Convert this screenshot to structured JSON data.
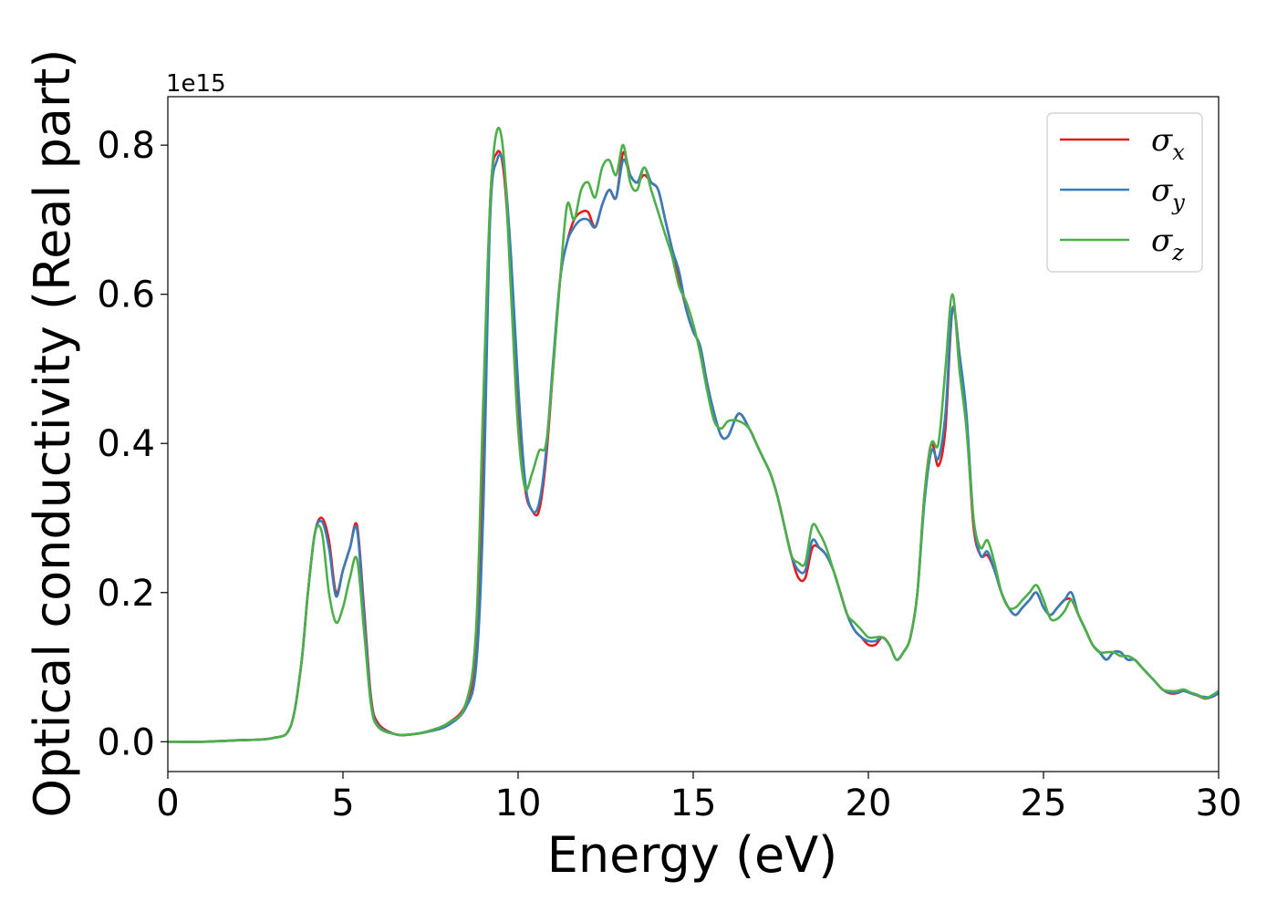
{
  "chart_data": {
    "type": "line",
    "xlabel": "Energy (eV)",
    "ylabel": "Optical conductivity (Real part)",
    "y_offset_label": "1e15",
    "xlim": [
      0,
      30
    ],
    "ylim": [
      -0.04,
      0.865
    ],
    "xticks": [
      0,
      5,
      10,
      15,
      20,
      25,
      30
    ],
    "xtick_labels": [
      "0",
      "5",
      "10",
      "15",
      "20",
      "25",
      "30"
    ],
    "yticks": [
      0.0,
      0.2,
      0.4,
      0.6,
      0.8
    ],
    "ytick_labels": [
      "0.0",
      "0.2",
      "0.4",
      "0.6",
      "0.8"
    ],
    "grid": false,
    "legend_position": "top-right",
    "series": [
      {
        "name": "σ",
        "subscript": "x",
        "color": "#e41a1c",
        "x": [
          0,
          1,
          2,
          3,
          3.5,
          3.8,
          4.0,
          4.2,
          4.4,
          4.6,
          4.8,
          5.0,
          5.2,
          5.4,
          5.6,
          5.8,
          6.0,
          6.5,
          7.0,
          7.5,
          8.0,
          8.5,
          8.8,
          9.0,
          9.2,
          9.4,
          9.6,
          9.8,
          10.0,
          10.2,
          10.4,
          10.6,
          10.8,
          11.0,
          11.2,
          11.4,
          11.6,
          11.8,
          12.0,
          12.2,
          12.4,
          12.6,
          12.8,
          13.0,
          13.2,
          13.4,
          13.6,
          13.8,
          14.0,
          14.2,
          14.4,
          14.6,
          14.8,
          15.0,
          15.2,
          15.4,
          15.6,
          15.8,
          16.0,
          16.3,
          16.6,
          16.8,
          17.0,
          17.2,
          17.4,
          17.6,
          17.8,
          18.0,
          18.2,
          18.4,
          18.6,
          18.8,
          19.0,
          19.2,
          19.4,
          19.6,
          19.8,
          20.0,
          20.2,
          20.4,
          20.6,
          20.8,
          21.0,
          21.2,
          21.4,
          21.6,
          21.8,
          22.0,
          22.2,
          22.4,
          22.6,
          22.8,
          23.0,
          23.2,
          23.4,
          23.6,
          23.8,
          24.0,
          24.2,
          24.4,
          24.6,
          24.8,
          25.0,
          25.2,
          25.4,
          25.6,
          25.8,
          26.0,
          26.2,
          26.4,
          26.6,
          26.8,
          27.0,
          27.2,
          27.4,
          27.6,
          27.8,
          28.0,
          28.2,
          28.4,
          28.6,
          28.8,
          29.0,
          29.2,
          29.4,
          29.6,
          29.8,
          30.0
        ],
        "y": [
          0.0,
          0.0,
          0.002,
          0.005,
          0.02,
          0.1,
          0.2,
          0.28,
          0.3,
          0.27,
          0.2,
          0.23,
          0.26,
          0.29,
          0.18,
          0.06,
          0.025,
          0.01,
          0.01,
          0.015,
          0.025,
          0.05,
          0.12,
          0.35,
          0.72,
          0.79,
          0.76,
          0.62,
          0.45,
          0.34,
          0.31,
          0.31,
          0.38,
          0.5,
          0.62,
          0.67,
          0.7,
          0.71,
          0.71,
          0.69,
          0.72,
          0.74,
          0.73,
          0.79,
          0.76,
          0.75,
          0.76,
          0.75,
          0.74,
          0.7,
          0.66,
          0.62,
          0.58,
          0.55,
          0.53,
          0.48,
          0.44,
          0.41,
          0.41,
          0.44,
          0.42,
          0.4,
          0.38,
          0.36,
          0.33,
          0.29,
          0.25,
          0.22,
          0.22,
          0.26,
          0.26,
          0.25,
          0.23,
          0.2,
          0.17,
          0.15,
          0.14,
          0.13,
          0.13,
          0.14,
          0.13,
          0.11,
          0.12,
          0.14,
          0.2,
          0.33,
          0.4,
          0.37,
          0.42,
          0.58,
          0.52,
          0.43,
          0.29,
          0.25,
          0.25,
          0.23,
          0.2,
          0.18,
          0.17,
          0.18,
          0.19,
          0.2,
          0.18,
          0.17,
          0.18,
          0.19,
          0.19,
          0.17,
          0.15,
          0.13,
          0.12,
          0.11,
          0.12,
          0.12,
          0.11,
          0.11,
          0.1,
          0.09,
          0.08,
          0.07,
          0.065,
          0.065,
          0.068,
          0.065,
          0.062,
          0.058,
          0.06,
          0.065
        ]
      },
      {
        "name": "σ",
        "subscript": "y",
        "color": "#377eb8",
        "x": [
          0,
          1,
          2,
          3,
          3.5,
          3.8,
          4.0,
          4.2,
          4.4,
          4.6,
          4.8,
          5.0,
          5.2,
          5.4,
          5.6,
          5.8,
          6.0,
          6.5,
          7.0,
          7.5,
          8.0,
          8.5,
          8.8,
          9.0,
          9.2,
          9.4,
          9.6,
          9.8,
          10.0,
          10.2,
          10.4,
          10.6,
          10.8,
          11.0,
          11.2,
          11.4,
          11.6,
          11.8,
          12.0,
          12.2,
          12.4,
          12.6,
          12.8,
          13.0,
          13.2,
          13.4,
          13.6,
          13.8,
          14.0,
          14.2,
          14.4,
          14.6,
          14.8,
          15.0,
          15.2,
          15.4,
          15.6,
          15.8,
          16.0,
          16.3,
          16.6,
          16.8,
          17.0,
          17.2,
          17.4,
          17.6,
          17.8,
          18.0,
          18.2,
          18.4,
          18.6,
          18.8,
          19.0,
          19.2,
          19.4,
          19.6,
          19.8,
          20.0,
          20.2,
          20.4,
          20.6,
          20.8,
          21.0,
          21.2,
          21.4,
          21.6,
          21.8,
          22.0,
          22.2,
          22.4,
          22.6,
          22.8,
          23.0,
          23.2,
          23.4,
          23.6,
          23.8,
          24.0,
          24.2,
          24.4,
          24.6,
          24.8,
          25.0,
          25.2,
          25.4,
          25.6,
          25.8,
          26.0,
          26.2,
          26.4,
          26.6,
          26.8,
          27.0,
          27.2,
          27.4,
          27.6,
          27.8,
          28.0,
          28.2,
          28.4,
          28.6,
          28.8,
          29.0,
          29.2,
          29.4,
          29.6,
          29.8,
          30.0
        ],
        "y": [
          0.0,
          0.0,
          0.002,
          0.005,
          0.02,
          0.1,
          0.2,
          0.28,
          0.295,
          0.26,
          0.195,
          0.23,
          0.26,
          0.285,
          0.17,
          0.055,
          0.022,
          0.01,
          0.01,
          0.014,
          0.022,
          0.045,
          0.1,
          0.3,
          0.7,
          0.78,
          0.77,
          0.65,
          0.48,
          0.35,
          0.31,
          0.32,
          0.39,
          0.51,
          0.62,
          0.67,
          0.69,
          0.7,
          0.7,
          0.69,
          0.72,
          0.74,
          0.73,
          0.78,
          0.76,
          0.75,
          0.77,
          0.75,
          0.74,
          0.7,
          0.66,
          0.63,
          0.58,
          0.55,
          0.53,
          0.48,
          0.44,
          0.41,
          0.41,
          0.44,
          0.42,
          0.4,
          0.38,
          0.36,
          0.33,
          0.29,
          0.25,
          0.23,
          0.23,
          0.27,
          0.26,
          0.25,
          0.23,
          0.2,
          0.17,
          0.15,
          0.14,
          0.135,
          0.135,
          0.14,
          0.13,
          0.11,
          0.12,
          0.14,
          0.2,
          0.32,
          0.39,
          0.38,
          0.44,
          0.58,
          0.52,
          0.44,
          0.3,
          0.25,
          0.255,
          0.23,
          0.2,
          0.18,
          0.17,
          0.18,
          0.19,
          0.2,
          0.18,
          0.17,
          0.18,
          0.19,
          0.2,
          0.17,
          0.15,
          0.13,
          0.12,
          0.11,
          0.12,
          0.12,
          0.11,
          0.11,
          0.1,
          0.09,
          0.08,
          0.07,
          0.066,
          0.066,
          0.068,
          0.065,
          0.062,
          0.06,
          0.06,
          0.065
        ]
      },
      {
        "name": "σ",
        "subscript": "z",
        "color": "#4daf4a",
        "x": [
          0,
          1,
          2,
          3,
          3.5,
          3.8,
          4.0,
          4.2,
          4.4,
          4.6,
          4.8,
          5.0,
          5.2,
          5.4,
          5.6,
          5.8,
          6.0,
          6.5,
          7.0,
          7.5,
          8.0,
          8.5,
          8.8,
          9.0,
          9.2,
          9.4,
          9.6,
          9.8,
          10.0,
          10.2,
          10.4,
          10.6,
          10.8,
          11.0,
          11.2,
          11.4,
          11.6,
          11.8,
          12.0,
          12.2,
          12.4,
          12.6,
          12.8,
          13.0,
          13.2,
          13.4,
          13.6,
          13.8,
          14.0,
          14.2,
          14.4,
          14.6,
          14.8,
          15.0,
          15.2,
          15.4,
          15.6,
          15.8,
          16.0,
          16.3,
          16.6,
          16.8,
          17.0,
          17.2,
          17.4,
          17.6,
          17.8,
          18.0,
          18.2,
          18.4,
          18.6,
          18.8,
          19.0,
          19.2,
          19.4,
          19.6,
          19.8,
          20.0,
          20.2,
          20.4,
          20.6,
          20.8,
          21.0,
          21.2,
          21.4,
          21.6,
          21.8,
          22.0,
          22.2,
          22.4,
          22.6,
          22.8,
          23.0,
          23.2,
          23.4,
          23.6,
          23.8,
          24.0,
          24.2,
          24.4,
          24.6,
          24.8,
          25.0,
          25.2,
          25.4,
          25.6,
          25.8,
          26.0,
          26.2,
          26.4,
          26.6,
          26.8,
          27.0,
          27.2,
          27.4,
          27.6,
          27.8,
          28.0,
          28.2,
          28.4,
          28.6,
          28.8,
          29.0,
          29.2,
          29.4,
          29.6,
          29.8,
          30.0
        ],
        "y": [
          0.0,
          0.0,
          0.002,
          0.005,
          0.02,
          0.1,
          0.2,
          0.28,
          0.28,
          0.2,
          0.16,
          0.18,
          0.22,
          0.245,
          0.15,
          0.05,
          0.02,
          0.01,
          0.01,
          0.015,
          0.025,
          0.05,
          0.15,
          0.45,
          0.72,
          0.82,
          0.78,
          0.6,
          0.42,
          0.34,
          0.36,
          0.39,
          0.4,
          0.5,
          0.62,
          0.72,
          0.7,
          0.74,
          0.75,
          0.73,
          0.77,
          0.78,
          0.76,
          0.8,
          0.75,
          0.74,
          0.77,
          0.74,
          0.71,
          0.68,
          0.65,
          0.61,
          0.59,
          0.56,
          0.52,
          0.47,
          0.43,
          0.42,
          0.43,
          0.43,
          0.42,
          0.4,
          0.38,
          0.36,
          0.33,
          0.29,
          0.25,
          0.24,
          0.24,
          0.29,
          0.28,
          0.26,
          0.23,
          0.2,
          0.17,
          0.16,
          0.15,
          0.14,
          0.14,
          0.14,
          0.13,
          0.11,
          0.12,
          0.14,
          0.2,
          0.33,
          0.4,
          0.4,
          0.5,
          0.6,
          0.5,
          0.42,
          0.3,
          0.26,
          0.27,
          0.24,
          0.2,
          0.18,
          0.18,
          0.19,
          0.2,
          0.21,
          0.19,
          0.165,
          0.165,
          0.175,
          0.19,
          0.17,
          0.15,
          0.13,
          0.12,
          0.12,
          0.12,
          0.115,
          0.115,
          0.11,
          0.1,
          0.09,
          0.08,
          0.07,
          0.068,
          0.068,
          0.07,
          0.066,
          0.063,
          0.058,
          0.062,
          0.068
        ]
      }
    ]
  }
}
